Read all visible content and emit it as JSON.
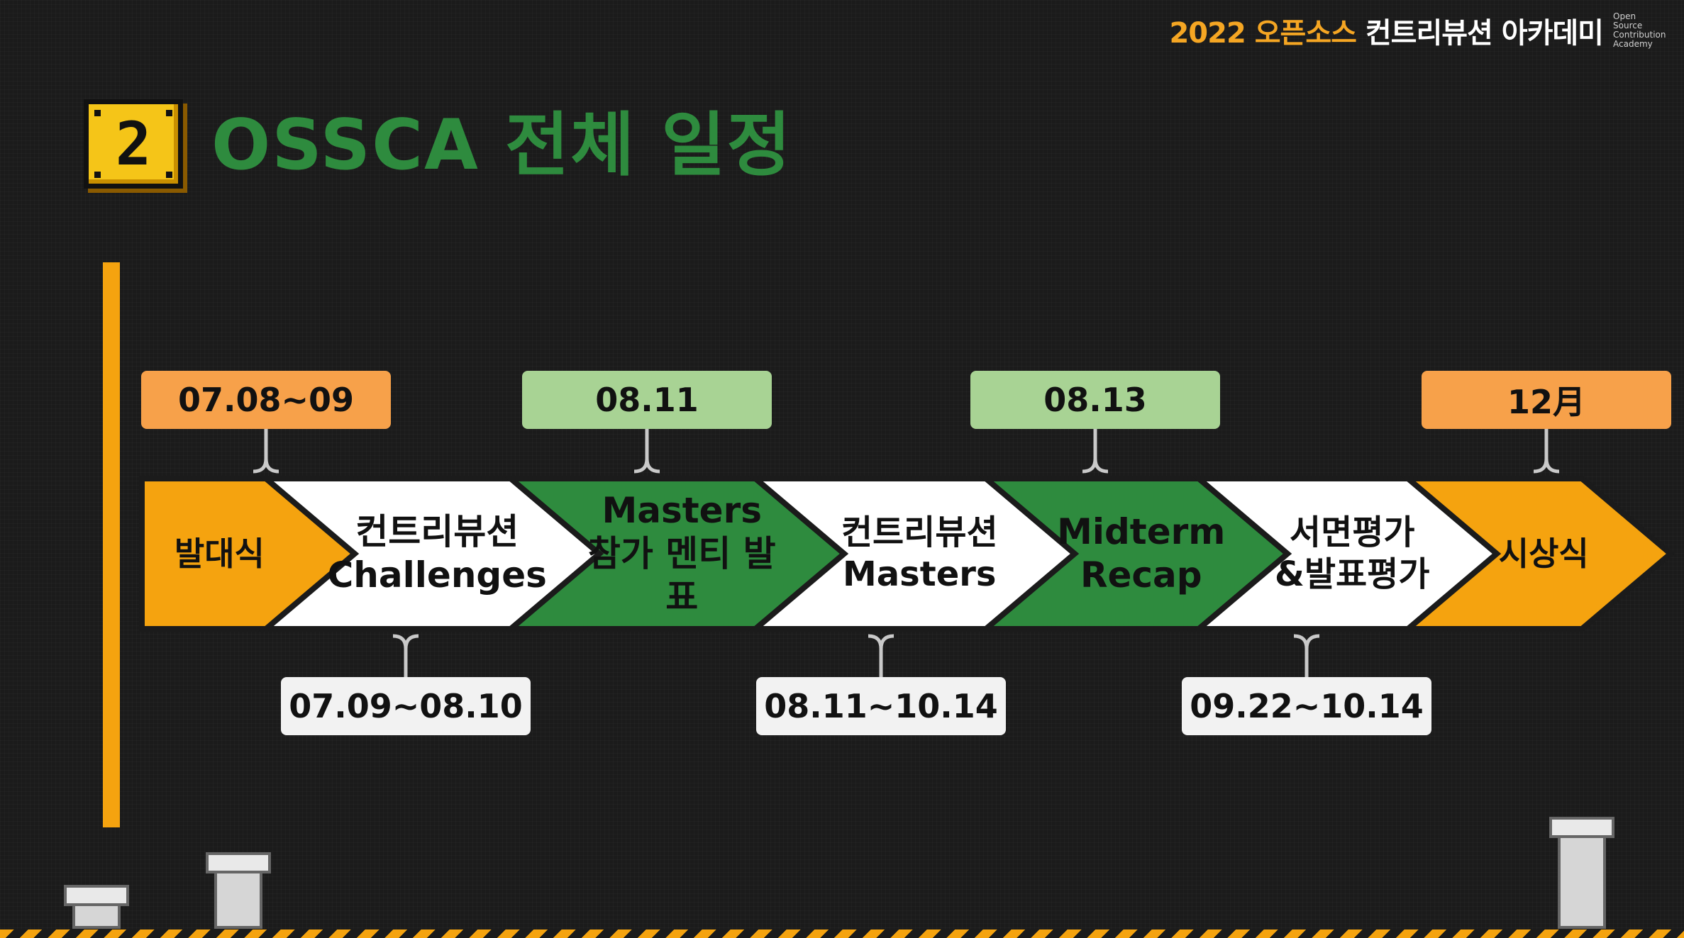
{
  "brand": {
    "year": "2022",
    "kr_orange": "오픈소스",
    "kr_white": "컨트리뷰션 아카데미",
    "en": "Open Source\nContribution\nAcademy"
  },
  "section": {
    "number": "2",
    "title": "OSSCA 전체 일정"
  },
  "colors": {
    "orange": "#f5a30f",
    "green": "#2e8b3e",
    "white": "#ffffff",
    "top_pill": "#f7a14a",
    "green_pill": "#a8d394",
    "gray_pill": "#f2f2f2"
  },
  "timeline": {
    "stages": [
      {
        "label": "발대식",
        "color": "orange"
      },
      {
        "label": "컨트리뷰션\nChallenges",
        "color": "white"
      },
      {
        "label": "Masters\n참가 멘티 발표",
        "color": "green"
      },
      {
        "label": "컨트리뷰션\nMasters",
        "color": "white"
      },
      {
        "label": "Midterm\nRecap",
        "color": "green"
      },
      {
        "label": "서면평가\n&발표평가",
        "color": "white"
      },
      {
        "label": "시상식",
        "color": "orange"
      }
    ],
    "top_dates": [
      {
        "text": "07.08~09",
        "style": "orange"
      },
      {
        "text": "08.11",
        "style": "green"
      },
      {
        "text": "08.13",
        "style": "green"
      },
      {
        "text": "12月",
        "style": "orange"
      }
    ],
    "bottom_dates": [
      {
        "text": "07.09~08.10"
      },
      {
        "text": "08.11~10.14"
      },
      {
        "text": "09.22~10.14"
      }
    ]
  }
}
